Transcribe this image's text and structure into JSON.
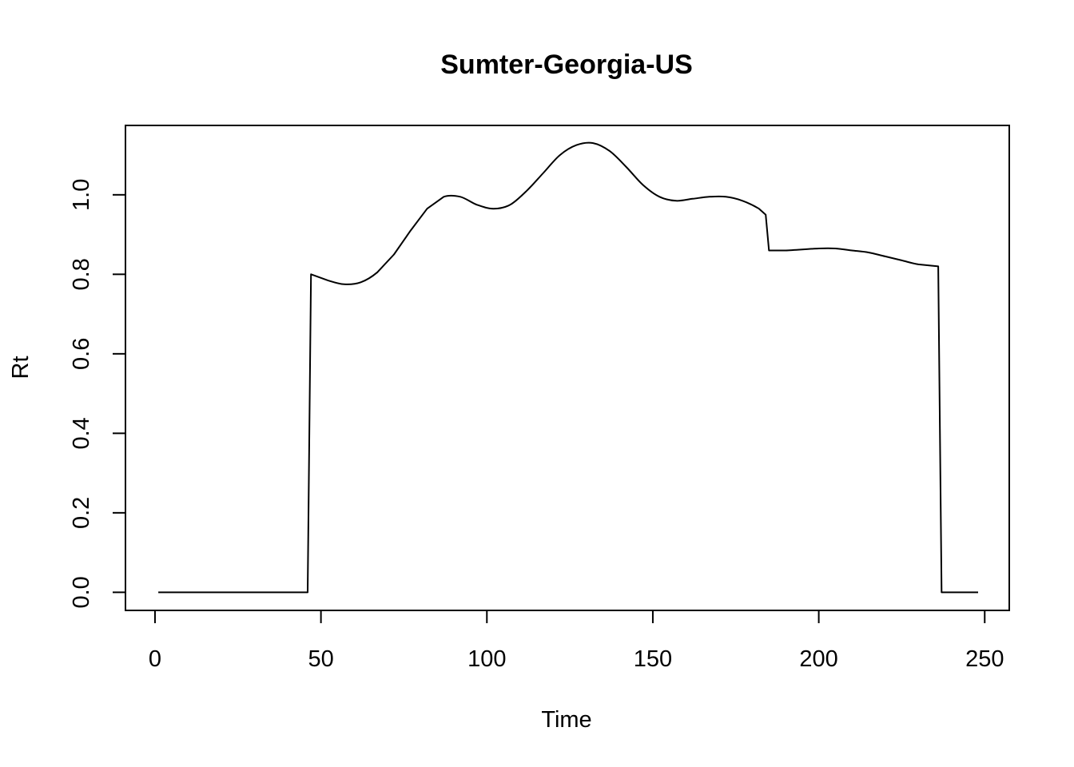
{
  "chart_data": {
    "type": "line",
    "title": "Sumter-Georgia-US",
    "xlabel": "Time",
    "ylabel": "Rt",
    "xlim": [
      -8.9,
      257.4
    ],
    "ylim": [
      -0.0455,
      1.1745
    ],
    "xticks": [
      0,
      50,
      100,
      150,
      200,
      250
    ],
    "xtick_labels": [
      "0",
      "50",
      "100",
      "150",
      "200",
      "250"
    ],
    "yticks": [
      0.0,
      0.2,
      0.4,
      0.6,
      0.8,
      1.0
    ],
    "ytick_labels": [
      "0.0",
      "0.2",
      "0.4",
      "0.6",
      "0.8",
      "1.0"
    ],
    "grid": false,
    "legend": "none",
    "line_color": "#000000",
    "series": [
      {
        "x": [
          1,
          46,
          47,
          52,
          57,
          62,
          67,
          72,
          77,
          82,
          87,
          92,
          97,
          102,
          107,
          112,
          117,
          122,
          127,
          132,
          137,
          142,
          147,
          152,
          157,
          162,
          167,
          172,
          177,
          182,
          184,
          185,
          190,
          200,
          205,
          210,
          215,
          220,
          225,
          230,
          236,
          237,
          248
        ],
        "y": [
          0,
          0,
          0.8,
          0.785,
          0.775,
          0.78,
          0.805,
          0.85,
          0.91,
          0.965,
          0.995,
          0.995,
          0.975,
          0.965,
          0.975,
          1.01,
          1.055,
          1.1,
          1.125,
          1.13,
          1.11,
          1.07,
          1.025,
          0.995,
          0.985,
          0.99,
          0.995,
          0.995,
          0.985,
          0.965,
          0.95,
          0.86,
          0.86,
          0.865,
          0.865,
          0.86,
          0.855,
          0.845,
          0.835,
          0.825,
          0.82,
          0,
          0
        ]
      }
    ]
  }
}
